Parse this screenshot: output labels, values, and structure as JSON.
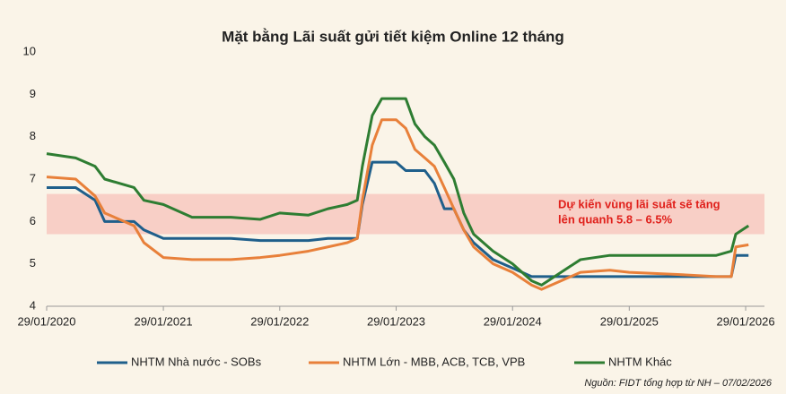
{
  "chart_data": {
    "type": "line",
    "title": "Mặt bằng Lãi suất gửi tiết kiệm Online 12 tháng",
    "x": [
      "2020-01-29",
      "2020-04-29",
      "2020-06-29",
      "2020-07-29",
      "2020-10-29",
      "2020-11-29",
      "2021-01-29",
      "2021-04-29",
      "2021-08-29",
      "2021-11-29",
      "2022-01-29",
      "2022-04-29",
      "2022-06-29",
      "2022-08-29",
      "2022-09-29",
      "2022-10-15",
      "2022-11-15",
      "2022-12-15",
      "2023-01-29",
      "2023-02-28",
      "2023-03-29",
      "2023-04-29",
      "2023-05-29",
      "2023-06-29",
      "2023-07-29",
      "2023-08-29",
      "2023-09-29",
      "2023-11-29",
      "2024-01-29",
      "2024-03-29",
      "2024-04-29",
      "2024-06-29",
      "2024-08-29",
      "2024-11-29",
      "2025-01-29",
      "2025-06-29",
      "2025-10-29",
      "2025-12-15",
      "2025-12-29",
      "2026-02-07"
    ],
    "series": [
      {
        "name": "NHTM Nhà nước - SOBs",
        "color": "#1f5f8b",
        "values": [
          6.8,
          6.8,
          6.5,
          6.0,
          6.0,
          5.8,
          5.6,
          5.6,
          5.6,
          5.55,
          5.55,
          5.55,
          5.6,
          5.6,
          5.6,
          6.4,
          7.4,
          7.4,
          7.4,
          7.2,
          7.2,
          7.2,
          6.9,
          6.3,
          6.3,
          5.8,
          5.5,
          5.1,
          4.9,
          4.7,
          4.7,
          4.7,
          4.7,
          4.7,
          4.7,
          4.7,
          4.7,
          4.7,
          5.2,
          5.2
        ]
      },
      {
        "name": "NHTM Lớn - MBB, ACB, TCB, VPB",
        "color": "#e8803a",
        "values": [
          7.05,
          7.0,
          6.6,
          6.2,
          5.9,
          5.5,
          5.15,
          5.1,
          5.1,
          5.15,
          5.2,
          5.3,
          5.4,
          5.5,
          5.6,
          6.5,
          7.8,
          8.4,
          8.4,
          8.2,
          7.7,
          7.5,
          7.3,
          6.8,
          6.3,
          5.8,
          5.4,
          5.0,
          4.8,
          4.5,
          4.4,
          4.6,
          4.8,
          4.85,
          4.8,
          4.75,
          4.7,
          4.7,
          5.4,
          5.45
        ]
      },
      {
        "name": "NHTM Khác",
        "color": "#2e7d32",
        "values": [
          7.6,
          7.5,
          7.3,
          7.0,
          6.8,
          6.5,
          6.4,
          6.1,
          6.1,
          6.05,
          6.2,
          6.15,
          6.3,
          6.4,
          6.5,
          7.3,
          8.5,
          8.9,
          8.9,
          8.9,
          8.3,
          8.0,
          7.8,
          7.4,
          7.0,
          6.2,
          5.7,
          5.3,
          5.0,
          4.6,
          4.5,
          4.8,
          5.1,
          5.2,
          5.2,
          5.2,
          5.2,
          5.3,
          5.7,
          5.9
        ]
      }
    ],
    "xlim": [
      "2020-01-29",
      "2026-03-29"
    ],
    "xticks": [
      {
        "value": "2020-01-29",
        "label": "29/01/2020"
      },
      {
        "value": "2021-01-29",
        "label": "29/01/2021"
      },
      {
        "value": "2022-01-29",
        "label": "29/01/2022"
      },
      {
        "value": "2023-01-29",
        "label": "29/01/2023"
      },
      {
        "value": "2024-01-29",
        "label": "29/01/2024"
      },
      {
        "value": "2025-01-29",
        "label": "29/01/2025"
      },
      {
        "value": "2026-01-29",
        "label": "29/01/2026"
      }
    ],
    "ylim": [
      4,
      10
    ],
    "yticks": [
      4,
      5,
      6,
      7,
      8,
      9,
      10
    ],
    "band": [
      5.7,
      6.65
    ],
    "band_color": "#f8cfc6",
    "annotation": [
      "Dự kiến vùng lãi suất sẽ tăng",
      "lên quanh 5.8 – 6.5%"
    ],
    "source": "Nguồn: FIDT tổng hợp từ NH – 07/02/2026",
    "grid": false
  }
}
